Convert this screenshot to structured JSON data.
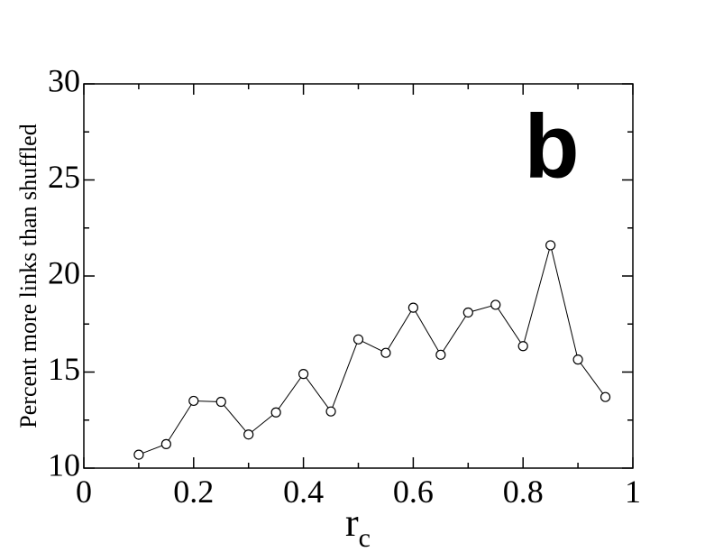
{
  "chart_data": {
    "type": "line",
    "y_label": "Percent more links than shuffled",
    "x_label": "r",
    "x_label_subscript": "c",
    "annotation": "b",
    "x": [
      0.1,
      0.15,
      0.2,
      0.25,
      0.3,
      0.35,
      0.4,
      0.45,
      0.5,
      0.55,
      0.6,
      0.65,
      0.7,
      0.75,
      0.8,
      0.85,
      0.9,
      0.95
    ],
    "series": [
      {
        "color": "#000000",
        "marker": "open-circle",
        "values": [
          10.7,
          11.25,
          13.5,
          13.45,
          11.75,
          12.9,
          14.9,
          12.95,
          16.7,
          16.0,
          18.35,
          15.9,
          18.1,
          18.5,
          16.35,
          21.6,
          15.65,
          13.7
        ]
      }
    ],
    "xlim": [
      0,
      1
    ],
    "xticks": [
      0,
      0.2,
      0.4,
      0.6,
      0.8,
      1
    ],
    "xminor": [
      0.1,
      0.3,
      0.5,
      0.7,
      0.9
    ],
    "ylim": [
      10,
      30
    ],
    "yticks": [
      10,
      15,
      20,
      25,
      30
    ],
    "yminor": [
      12.5,
      17.5,
      22.5,
      27.5
    ],
    "grid": false
  }
}
